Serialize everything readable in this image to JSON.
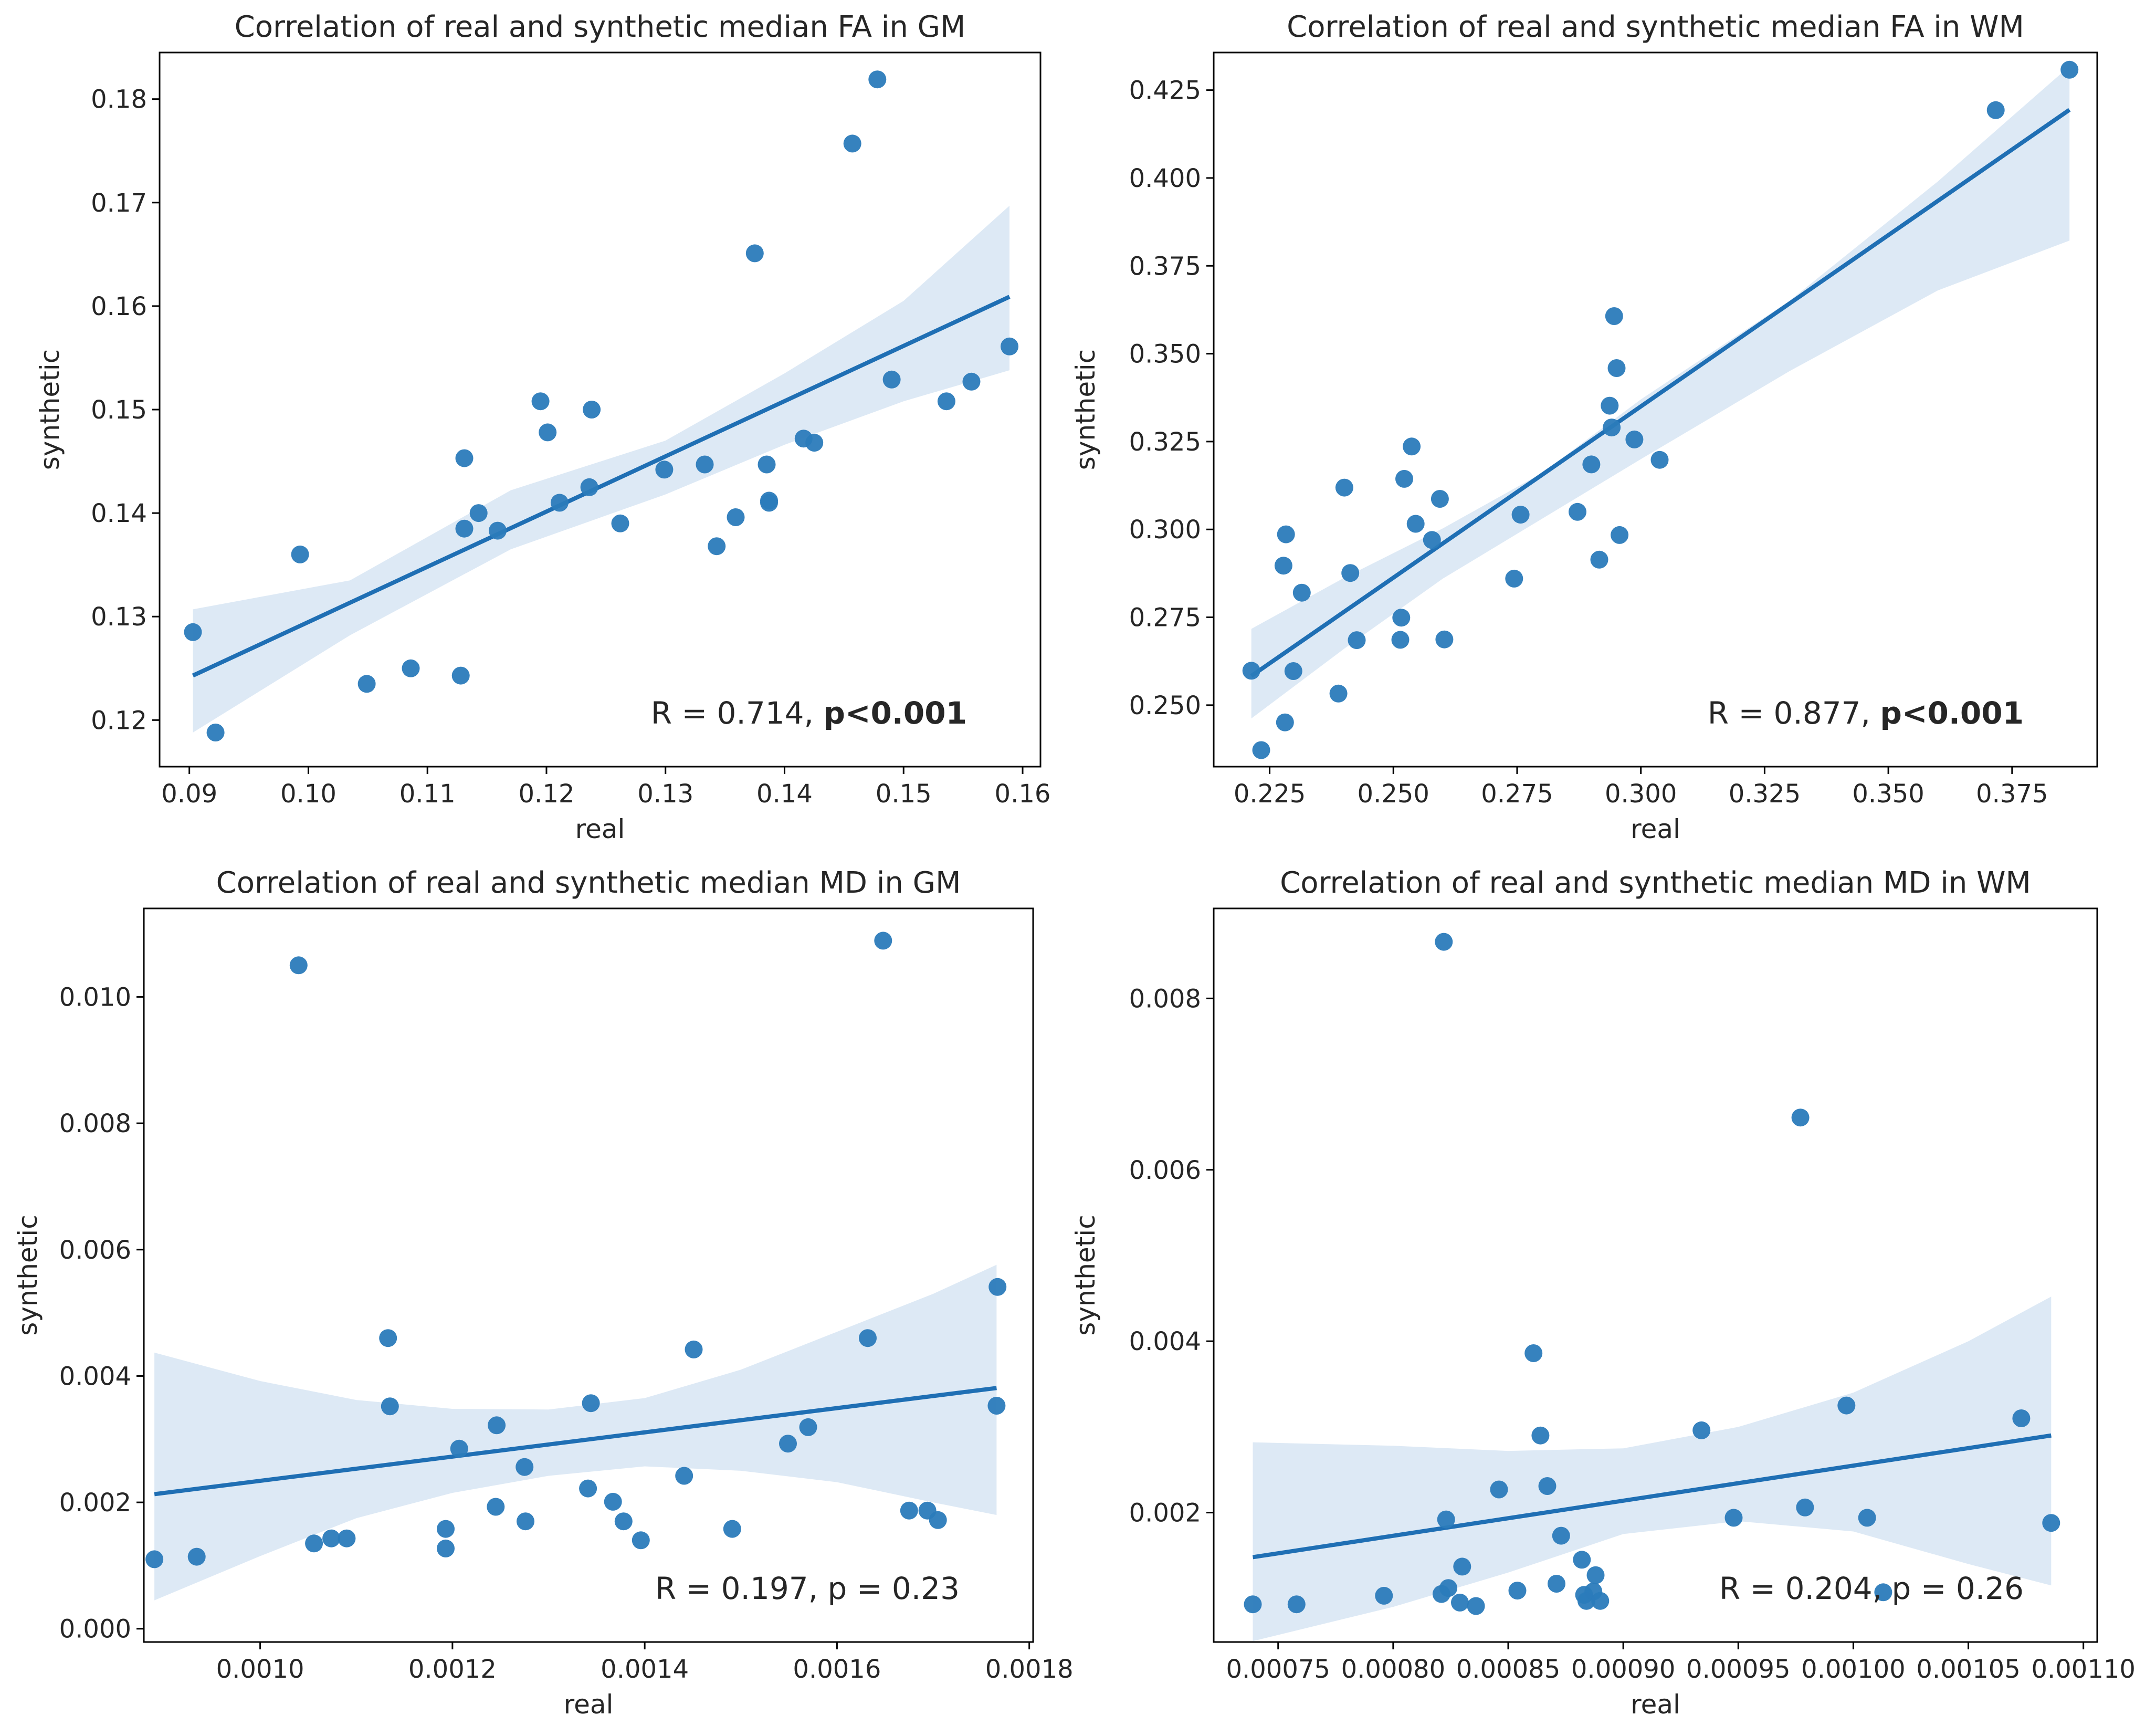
{
  "colors": {
    "point": "#2b7bba",
    "line": "#1f6fb4",
    "band": "#c6dbef",
    "axis": "#000000"
  },
  "chart_data": [
    {
      "type": "scatter",
      "title": "Correlation of real and synthetic median FA in GM",
      "xlabel": "real",
      "ylabel": "synthetic",
      "xlim": [
        0.0875,
        0.1615
      ],
      "ylim": [
        0.1155,
        0.1845
      ],
      "xticks": [
        0.09,
        0.1,
        0.11,
        0.12,
        0.13,
        0.14,
        0.15,
        0.16
      ],
      "xtick_labels": [
        "0.09",
        "0.10",
        "0.11",
        "0.12",
        "0.13",
        "0.14",
        "0.15",
        "0.16"
      ],
      "yticks": [
        0.12,
        0.13,
        0.14,
        0.15,
        0.16,
        0.17,
        0.18
      ],
      "ytick_labels": [
        "0.12",
        "0.13",
        "0.14",
        "0.15",
        "0.16",
        "0.17",
        "0.18"
      ],
      "stat_text": "R = 0.714, ",
      "stat_bold": "p<0.001",
      "fit": {
        "x": [
          0.0903,
          0.1589
        ],
        "y": [
          0.1243,
          0.1609
        ]
      },
      "band": {
        "x": [
          0.0903,
          0.1035,
          0.117,
          0.13,
          0.14,
          0.15,
          0.1589
        ],
        "upper": [
          0.1307,
          0.1335,
          0.1422,
          0.147,
          0.1535,
          0.1605,
          0.1697
        ],
        "lower": [
          0.1188,
          0.1282,
          0.1365,
          0.1418,
          0.1466,
          0.1508,
          0.1538
        ]
      },
      "points": {
        "x": [
          0.0903,
          0.0922,
          0.0993,
          0.1049,
          0.1086,
          0.1128,
          0.1131,
          0.1131,
          0.1143,
          0.1159,
          0.1195,
          0.1201,
          0.1211,
          0.1236,
          0.1238,
          0.1262,
          0.1299,
          0.1333,
          0.1343,
          0.1359,
          0.1375,
          0.1385,
          0.1387,
          0.1387,
          0.1416,
          0.1425,
          0.1457,
          0.1478,
          0.149,
          0.1536,
          0.1557,
          0.1589
        ],
        "y": [
          0.1285,
          0.1188,
          0.136,
          0.1235,
          0.125,
          0.1243,
          0.1453,
          0.1385,
          0.14,
          0.1383,
          0.1508,
          0.1478,
          0.141,
          0.1425,
          0.15,
          0.139,
          0.1442,
          0.1447,
          0.1368,
          0.1396,
          0.1651,
          0.1447,
          0.1412,
          0.141,
          0.1472,
          0.1468,
          0.1757,
          0.1819,
          0.1529,
          0.1508,
          0.1527,
          0.1561
        ]
      }
    },
    {
      "type": "scatter",
      "title": "Correlation of real and synthetic median FA in WM",
      "xlabel": "real",
      "ylabel": "synthetic",
      "xlim": [
        0.2137,
        0.3922
      ],
      "ylim": [
        0.2325,
        0.4357
      ],
      "xticks": [
        0.225,
        0.25,
        0.275,
        0.3,
        0.325,
        0.35,
        0.375
      ],
      "xtick_labels": [
        "0.225",
        "0.250",
        "0.275",
        "0.300",
        "0.325",
        "0.350",
        "0.375"
      ],
      "yticks": [
        0.25,
        0.275,
        0.3,
        0.325,
        0.35,
        0.375,
        0.4,
        0.425
      ],
      "ytick_labels": [
        "0.250",
        "0.275",
        "0.300",
        "0.325",
        "0.350",
        "0.375",
        "0.400",
        "0.425"
      ],
      "stat_text": "R = 0.877, ",
      "stat_bold": "p<0.001",
      "fit": {
        "x": [
          0.2213,
          0.3866
        ],
        "y": [
          0.2583,
          0.4194
        ]
      },
      "band": {
        "x": [
          0.2213,
          0.24,
          0.26,
          0.28,
          0.3,
          0.33,
          0.36,
          0.3866
        ],
        "upper": [
          0.2717,
          0.2862,
          0.3003,
          0.316,
          0.337,
          0.365,
          0.399,
          0.4318
        ]
      },
      "band_lower": [
        0.2462,
        0.266,
        0.286,
        0.303,
        0.32,
        0.345,
        0.368,
        0.3822
      ],
      "points": {
        "x": [
          0.2213,
          0.2233,
          0.2278,
          0.2281,
          0.2283,
          0.2298,
          0.2315,
          0.2389,
          0.2401,
          0.2413,
          0.2426,
          0.2514,
          0.2516,
          0.2522,
          0.2537,
          0.2545,
          0.2578,
          0.2594,
          0.2603,
          0.2744,
          0.2757,
          0.2872,
          0.29,
          0.2916,
          0.2937,
          0.2941,
          0.2946,
          0.2951,
          0.2957,
          0.2987,
          0.3038,
          0.3717,
          0.3866
        ],
        "y": [
          0.2598,
          0.2372,
          0.2897,
          0.2451,
          0.2986,
          0.2597,
          0.282,
          0.2533,
          0.3119,
          0.2876,
          0.2685,
          0.2686,
          0.2749,
          0.3144,
          0.3236,
          0.3016,
          0.297,
          0.3087,
          0.2687,
          0.286,
          0.3042,
          0.305,
          0.3185,
          0.2914,
          0.3352,
          0.329,
          0.3607,
          0.3459,
          0.2984,
          0.3256,
          0.3198,
          0.4193,
          0.4308
        ]
      }
    },
    {
      "type": "scatter",
      "title": "Correlation of real and synthetic median MD in GM",
      "xlabel": "real",
      "ylabel": "synthetic",
      "xlim": [
        0.000879,
        0.001804
      ],
      "ylim": [
        -0.00021,
        0.0114
      ],
      "xticks": [
        0.001,
        0.0012,
        0.0014,
        0.0016,
        0.0018
      ],
      "xtick_labels": [
        "0.0010",
        "0.0012",
        "0.0014",
        "0.0016",
        "0.0018"
      ],
      "yticks": [
        0.0,
        0.002,
        0.004,
        0.006,
        0.008,
        0.01
      ],
      "ytick_labels": [
        "0.000",
        "0.002",
        "0.004",
        "0.006",
        "0.008",
        "0.010"
      ],
      "stat_text": "R = 0.197, p = 0.23",
      "stat_bold": "",
      "fit": {
        "x": [
          0.00089,
          0.001766
        ],
        "y": [
          0.00213,
          0.00381
        ]
      },
      "band": {
        "x": [
          0.00089,
          0.001,
          0.0011,
          0.0012,
          0.0013,
          0.0014,
          0.0015,
          0.0016,
          0.0017,
          0.001766
        ],
        "upper": [
          0.00437,
          0.00392,
          0.00362,
          0.00348,
          0.00347,
          0.00365,
          0.0041,
          0.0047,
          0.0053,
          0.00576
        ]
      },
      "band_lower": [
        0.00045,
        0.00115,
        0.00175,
        0.00215,
        0.00242,
        0.00257,
        0.0025,
        0.00232,
        0.002,
        0.0018
      ],
      "points": {
        "x": [
          0.00089,
          0.000934,
          0.00104,
          0.001056,
          0.001074,
          0.00109,
          0.001133,
          0.001135,
          0.001193,
          0.001193,
          0.001207,
          0.001245,
          0.001246,
          0.001275,
          0.001276,
          0.001341,
          0.001344,
          0.001367,
          0.001378,
          0.001396,
          0.001441,
          0.001451,
          0.001491,
          0.001549,
          0.00157,
          0.001632,
          0.001648,
          0.001675,
          0.001694,
          0.001705,
          0.001766,
          0.001767
        ],
        "y": [
          0.0011,
          0.00114,
          0.0105,
          0.00135,
          0.00143,
          0.00143,
          0.0046,
          0.00352,
          0.00158,
          0.00127,
          0.00285,
          0.00193,
          0.00322,
          0.00256,
          0.0017,
          0.00222,
          0.00357,
          0.00201,
          0.0017,
          0.0014,
          0.00242,
          0.00442,
          0.00158,
          0.00293,
          0.00319,
          0.0046,
          0.01089,
          0.00187,
          0.00187,
          0.00172,
          0.00353,
          0.00541
        ]
      }
    },
    {
      "type": "scatter",
      "title": "Correlation of real and synthetic median MD in WM",
      "xlabel": "real",
      "ylabel": "synthetic",
      "xlim": [
        0.000722,
        0.001106
      ],
      "ylim": [
        0.00049,
        0.00905
      ],
      "xticks": [
        0.00075,
        0.0008,
        0.00085,
        0.0009,
        0.00095,
        0.001,
        0.00105,
        0.0011
      ],
      "xtick_labels": [
        "0.00075",
        "0.00080",
        "0.00085",
        "0.00090",
        "0.00095",
        "0.00100",
        "0.00105",
        "0.00110"
      ],
      "yticks": [
        0.002,
        0.004,
        0.006,
        0.008
      ],
      "ytick_labels": [
        "0.002",
        "0.004",
        "0.006",
        "0.008"
      ],
      "stat_text": "R = 0.204, p = 0.26",
      "stat_bold": "",
      "fit": {
        "x": [
          0.000739,
          0.001086
        ],
        "y": [
          0.00148,
          0.0029
        ]
      },
      "band": {
        "x": [
          0.000739,
          0.0008,
          0.00085,
          0.0009,
          0.00095,
          0.001,
          0.00105,
          0.001086
        ],
        "upper": [
          0.00282,
          0.00278,
          0.00272,
          0.00275,
          0.003,
          0.0034,
          0.004,
          0.00452
        ]
      },
      "band_lower": [
        0.0005,
        0.0009,
        0.0013,
        0.00175,
        0.0019,
        0.00178,
        0.0014,
        0.00115
      ],
      "points": {
        "x": [
          0.000739,
          0.000758,
          0.000796,
          0.000821,
          0.000822,
          0.000823,
          0.000824,
          0.000829,
          0.00083,
          0.000836,
          0.000846,
          0.000854,
          0.000861,
          0.000864,
          0.000867,
          0.000871,
          0.000873,
          0.000882,
          0.000883,
          0.000884,
          0.000887,
          0.000888,
          0.00089,
          0.000934,
          0.000948,
          0.000977,
          0.000979,
          0.000997,
          0.001006,
          0.001013,
          0.001073,
          0.001086
        ],
        "y": [
          0.00093,
          0.00093,
          0.00103,
          0.00105,
          0.00866,
          0.00192,
          0.00112,
          0.00095,
          0.00137,
          0.00091,
          0.00227,
          0.00109,
          0.00386,
          0.0029,
          0.00231,
          0.00117,
          0.00173,
          0.00145,
          0.00104,
          0.00097,
          0.00108,
          0.00127,
          0.00097,
          0.00296,
          0.00194,
          0.00661,
          0.00206,
          0.00325,
          0.00194,
          0.00107,
          0.0031,
          0.00188
        ]
      }
    }
  ]
}
